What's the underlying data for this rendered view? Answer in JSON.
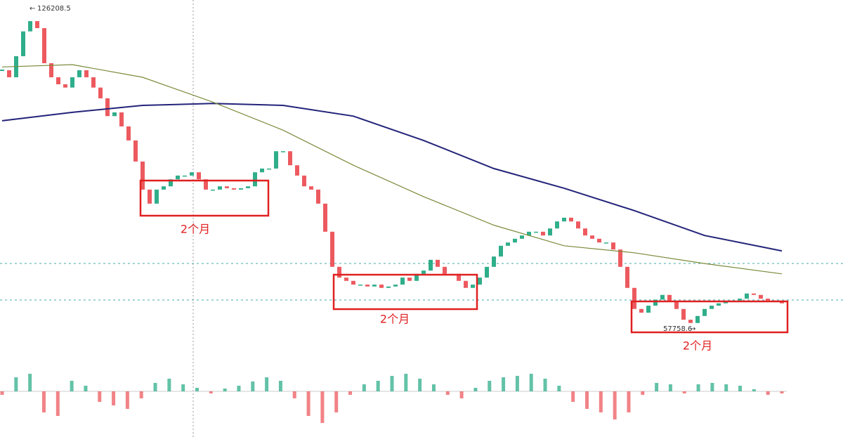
{
  "chart_data": {
    "type": "candlestick",
    "max_price": 126208.5,
    "min_price": 57758.6,
    "up_color": "#2fae8a",
    "down_color": "#ec5a5f",
    "close": [
      113000,
      111500,
      116000,
      121300,
      123500,
      122000,
      114500,
      111500,
      110000,
      109300,
      111500,
      113000,
      111500,
      109300,
      107000,
      103200,
      104000,
      101000,
      98000,
      93500,
      87500,
      84500,
      87500,
      88200,
      89700,
      90500,
      90500,
      91200,
      89700,
      87500,
      87500,
      88200,
      87800,
      87500,
      87800,
      88200,
      91200,
      92000,
      92000,
      95700,
      95700,
      92700,
      90500,
      88200,
      87500,
      84500,
      78500,
      71000,
      68700,
      68000,
      67200,
      67200,
      66800,
      67200,
      66500,
      66800,
      67200,
      68700,
      68000,
      69500,
      70200,
      72500,
      71000,
      69500,
      69500,
      68000,
      66500,
      67200,
      68700,
      71000,
      73200,
      75500,
      76200,
      77000,
      77700,
      78500,
      78500,
      77700,
      79200,
      80700,
      81500,
      80700,
      79200,
      77700,
      77000,
      76200,
      76200,
      74700,
      71000,
      66500,
      62000,
      61200,
      62700,
      64000,
      65000,
      63500,
      62000,
      59700,
      59000,
      60500,
      62000,
      62700,
      63200,
      63500,
      63800,
      64200,
      65300,
      65000,
      64200,
      63800,
      63500,
      63200
    ],
    "moving_averages": [
      {
        "color": "#23237a",
        "x": [
          0,
          10,
          20,
          30,
          40,
          50,
          60,
          70,
          80,
          90,
          100,
          111
        ],
        "values": [
          102200,
          104000,
          105500,
          105900,
          105500,
          103200,
          98000,
          92000,
          87800,
          83000,
          77700,
          74400
        ]
      },
      {
        "color": "#7a8a3a",
        "x": [
          0,
          10,
          20,
          30,
          40,
          50,
          60,
          70,
          80,
          90,
          100,
          111
        ],
        "values": [
          113700,
          114200,
          111500,
          106200,
          100200,
          92700,
          86000,
          79900,
          75500,
          74000,
          71700,
          69500
        ]
      }
    ],
    "macd_histogram": [
      -5,
      20,
      25,
      -30,
      -35,
      15,
      8,
      -15,
      -20,
      -25,
      -10,
      12,
      18,
      10,
      5,
      -3,
      4,
      8,
      14,
      20,
      15,
      -10,
      -35,
      -45,
      -30,
      -5,
      10,
      15,
      22,
      25,
      18,
      10,
      -5,
      -10,
      5,
      15,
      20,
      22,
      25,
      18,
      8,
      -15,
      -25,
      -30,
      -40,
      -30,
      -5,
      12,
      10,
      -3,
      10,
      12,
      10,
      8,
      3,
      -5,
      -3
    ],
    "annotations": [
      "2个月",
      "2个月",
      "2个月"
    ]
  }
}
